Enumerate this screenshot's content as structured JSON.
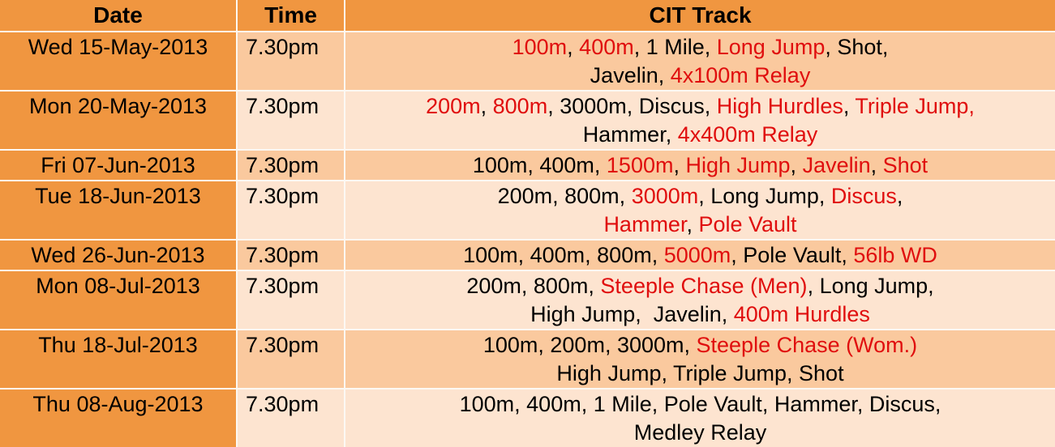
{
  "colors": {
    "header_orange": "#F09640",
    "row_band_dark": "#FAC99E",
    "row_band_light": "#FDE4D0",
    "highlight_red": "#E00E0E",
    "text_black": "#000000",
    "gridline_white": "#FCF8F3"
  },
  "table": {
    "columns": [
      "Date",
      "Time",
      "CIT Track"
    ],
    "rows": [
      {
        "date": "Wed 15-May-2013",
        "time": "7.30pm",
        "track_lines": [
          [
            {
              "text": "100m",
              "red": true
            },
            {
              "text": ", ",
              "red": false
            },
            {
              "text": "400m",
              "red": true
            },
            {
              "text": ", 1 Mile, ",
              "red": false
            },
            {
              "text": "Long Jump",
              "red": true
            },
            {
              "text": ", Shot,",
              "red": false
            }
          ],
          [
            {
              "text": "Javelin, ",
              "red": false
            },
            {
              "text": "4x100m Relay",
              "red": true
            }
          ]
        ]
      },
      {
        "date": "Mon 20-May-2013",
        "time": "7.30pm",
        "track_lines": [
          [
            {
              "text": "200m",
              "red": true
            },
            {
              "text": ", ",
              "red": false
            },
            {
              "text": "800m",
              "red": true
            },
            {
              "text": ", 3000m, Discus, ",
              "red": false
            },
            {
              "text": "High Hurdles",
              "red": true
            },
            {
              "text": ", ",
              "red": false
            },
            {
              "text": "Triple Jump,",
              "red": true
            }
          ],
          [
            {
              "text": "Hammer, ",
              "red": false
            },
            {
              "text": "4x400m Relay",
              "red": true
            }
          ]
        ]
      },
      {
        "date": "Fri 07-Jun-2013",
        "time": "7.30pm",
        "track_lines": [
          [
            {
              "text": "100m, 400m, ",
              "red": false
            },
            {
              "text": "1500m",
              "red": true
            },
            {
              "text": ", ",
              "red": false
            },
            {
              "text": "High Jump",
              "red": true
            },
            {
              "text": ", ",
              "red": false
            },
            {
              "text": "Javelin",
              "red": true
            },
            {
              "text": ", ",
              "red": false
            },
            {
              "text": "Shot",
              "red": true
            }
          ]
        ]
      },
      {
        "date": "Tue 18-Jun-2013",
        "time": "7.30pm",
        "track_lines": [
          [
            {
              "text": "200m, 800m, ",
              "red": false
            },
            {
              "text": "3000m",
              "red": true
            },
            {
              "text": ", Long Jump, ",
              "red": false
            },
            {
              "text": "Discus",
              "red": true
            },
            {
              "text": ",",
              "red": false
            }
          ],
          [
            {
              "text": "Hammer",
              "red": true
            },
            {
              "text": ", ",
              "red": false
            },
            {
              "text": "Pole Vault",
              "red": true
            }
          ]
        ]
      },
      {
        "date": "Wed 26-Jun-2013",
        "time": "7.30pm",
        "track_lines": [
          [
            {
              "text": "100m, 400m, 800m, ",
              "red": false
            },
            {
              "text": "5000m",
              "red": true
            },
            {
              "text": ", Pole Vault, ",
              "red": false
            },
            {
              "text": "56lb WD",
              "red": true
            }
          ]
        ]
      },
      {
        "date": "Mon 08-Jul-2013",
        "time": "7.30pm",
        "track_lines": [
          [
            {
              "text": "200m, 800m, ",
              "red": false
            },
            {
              "text": "Steeple Chase (Men)",
              "red": true
            },
            {
              "text": ", Long Jump,",
              "red": false
            }
          ],
          [
            {
              "text": "High Jump,  Javelin, ",
              "red": false
            },
            {
              "text": "400m Hurdles",
              "red": true
            }
          ]
        ]
      },
      {
        "date": "Thu 18-Jul-2013",
        "time": "7.30pm",
        "track_lines": [
          [
            {
              "text": "100m, 200m, 3000m, ",
              "red": false
            },
            {
              "text": "Steeple Chase (Wom.)",
              "red": true
            }
          ],
          [
            {
              "text": "High Jump, Triple Jump, Shot",
              "red": false
            }
          ]
        ]
      },
      {
        "date": "Thu 08-Aug-2013",
        "time": "7.30pm",
        "track_lines": [
          [
            {
              "text": "100m, 400m, 1 Mile, Pole Vault, Hammer, Discus,",
              "red": false
            }
          ],
          [
            {
              "text": "Medley Relay",
              "red": false
            }
          ]
        ]
      }
    ]
  }
}
